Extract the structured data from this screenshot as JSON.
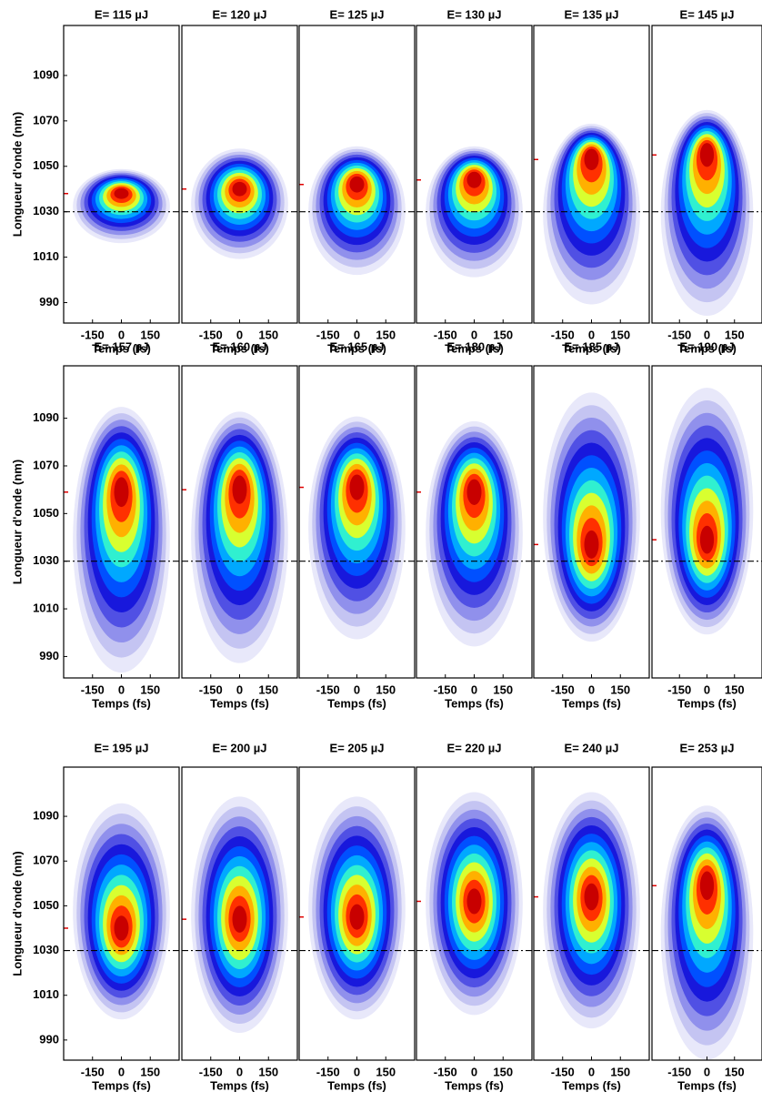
{
  "chart_data": {
    "type": "heatmap",
    "xlabel": "Temps (fs)",
    "ylabel": "Longueur d'onde (nm)",
    "xlim": [
      -300,
      300
    ],
    "xticks": [
      -150,
      0,
      150
    ],
    "ylim": [
      981,
      1112
    ],
    "yticks": [
      990,
      1010,
      1030,
      1050,
      1070,
      1090
    ],
    "reference_wavelength": 1030,
    "panels": [
      {
        "title": "E= 115 µJ",
        "peak": 1038,
        "span": [
          1017,
          1048
        ]
      },
      {
        "title": "E= 120 µJ",
        "peak": 1040,
        "span": [
          1010,
          1057
        ]
      },
      {
        "title": "E= 125 µJ",
        "peak": 1042,
        "span": [
          1003,
          1058
        ]
      },
      {
        "title": "E= 130 µJ",
        "peak": 1044,
        "span": [
          1002,
          1058
        ]
      },
      {
        "title": "E= 135 µJ",
        "peak": 1053,
        "span": [
          990,
          1068
        ]
      },
      {
        "title": "E= 145 µJ",
        "peak": 1055,
        "span": [
          985,
          1074
        ]
      },
      {
        "title": "E= 157 µJ",
        "peak": 1059,
        "span": [
          984,
          1094
        ]
      },
      {
        "title": "E= 160 µJ",
        "peak": 1060,
        "span": [
          988,
          1092
        ]
      },
      {
        "title": "E= 165 µJ",
        "peak": 1061,
        "span": [
          998,
          1090
        ]
      },
      {
        "title": "E= 180 µJ",
        "peak": 1059,
        "span": [
          995,
          1088
        ]
      },
      {
        "title": "E= 185 µJ",
        "peak": 1037,
        "span": [
          997,
          1100
        ]
      },
      {
        "title": "E= 190 µJ",
        "peak": 1039,
        "span": [
          1000,
          1102
        ]
      },
      {
        "title": "E= 195 µJ",
        "peak": 1040,
        "span": [
          1000,
          1095
        ]
      },
      {
        "title": "E= 200 µJ",
        "peak": 1044,
        "span": [
          994,
          1098
        ]
      },
      {
        "title": "E= 205 µJ",
        "peak": 1045,
        "span": [
          1000,
          1098
        ]
      },
      {
        "title": "E= 220 µJ",
        "peak": 1052,
        "span": [
          1002,
          1100
        ]
      },
      {
        "title": "E= 240 µJ",
        "peak": 1054,
        "span": [
          996,
          1100
        ]
      },
      {
        "title": "E= 253 µJ",
        "peak": 1059,
        "span": [
          982,
          1094
        ]
      }
    ]
  }
}
